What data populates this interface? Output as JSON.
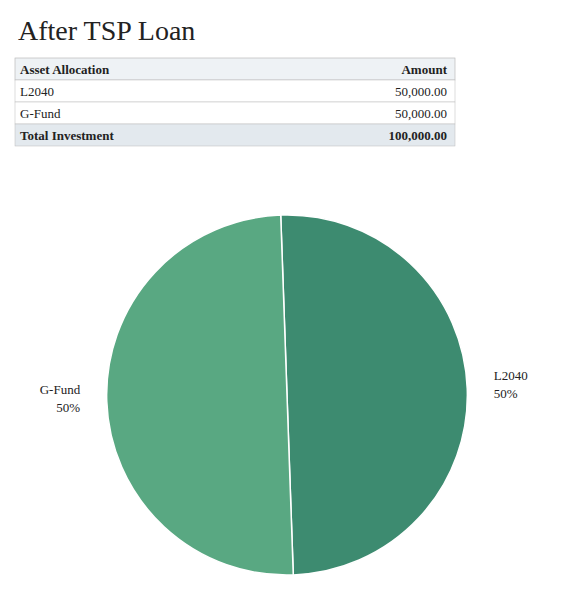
{
  "chart_data": [
    {
      "type": "table",
      "title": "After TSP Loan",
      "columns": [
        "Asset Allocation",
        "Amount"
      ],
      "rows": [
        [
          "L2040",
          "50,000.00"
        ],
        [
          "G-Fund",
          "50,000.00"
        ],
        [
          "Total Investment",
          "100,000.00"
        ]
      ]
    },
    {
      "type": "pie",
      "categories": [
        "L2040",
        "G-Fund"
      ],
      "values": [
        50,
        50
      ],
      "value_labels": [
        "50%",
        "50%"
      ],
      "colors": [
        "#3d8b70",
        "#59a882"
      ],
      "data_labels": true
    }
  ]
}
